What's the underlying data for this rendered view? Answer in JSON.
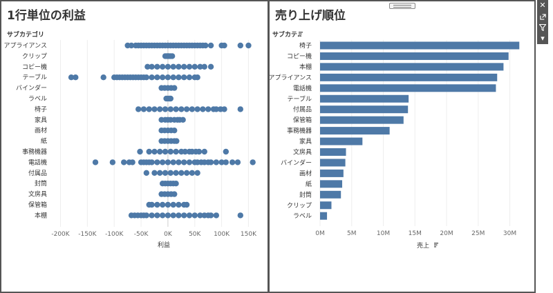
{
  "left_view": {
    "title": "1行単位の利益",
    "row_header": "サブカテゴリ",
    "x_axis_title": "利益"
  },
  "right_view": {
    "title": "売り上げ順位",
    "row_header": "サブカテ..",
    "x_axis_title": "売上"
  },
  "toolbar": {
    "icons": [
      "close-icon",
      "popout-icon",
      "filter-icon",
      "dropdown-icon"
    ]
  },
  "chart_data": [
    {
      "type": "scatter",
      "title": "1行単位の利益",
      "xlabel": "利益",
      "ylabel": "サブカテゴリ",
      "xlim": [
        -220000,
        170000
      ],
      "x_ticks": [
        -200000,
        -150000,
        -100000,
        -50000,
        0,
        50000,
        100000,
        150000
      ],
      "x_tick_labels": [
        "-200K",
        "-150K",
        "-100K",
        "-50K",
        "0K",
        "50K",
        "100K",
        "150K"
      ],
      "grid": true,
      "color": "#4e79a7",
      "categories": [
        "アプライアンス",
        "クリップ",
        "コピー機",
        "テーブル",
        "バインダー",
        "ラベル",
        "椅子",
        "家具",
        "画材",
        "紙",
        "事務機器",
        "電話機",
        "付属品",
        "封筒",
        "文房具",
        "保管箱",
        "本棚"
      ],
      "points": [
        [
          -75000,
          -68000,
          -60000,
          -55000,
          -50000,
          -45000,
          -40000,
          -35000,
          -30000,
          -25000,
          -20000,
          -15000,
          -10000,
          -5000,
          0,
          5000,
          10000,
          15000,
          20000,
          25000,
          30000,
          35000,
          40000,
          45000,
          50000,
          55000,
          60000,
          65000,
          70000,
          80000,
          100000,
          105000,
          135000,
          150000
        ],
        [
          -5000,
          -2000,
          0,
          2000,
          5000,
          8000
        ],
        [
          -38000,
          -30000,
          -20000,
          -10000,
          0,
          10000,
          20000,
          30000,
          40000,
          50000,
          60000,
          68000,
          80000
        ],
        [
          -180000,
          -172000,
          -120000,
          -100000,
          -95000,
          -90000,
          -85000,
          -80000,
          -75000,
          -70000,
          -65000,
          -60000,
          -55000,
          -50000,
          -45000,
          -40000,
          -30000,
          -20000,
          -10000,
          0,
          10000,
          20000,
          30000,
          40000,
          50000,
          55000
        ],
        [
          -12000,
          -6000,
          0,
          6000,
          12000
        ],
        [
          -3000,
          0,
          3000,
          5000
        ],
        [
          -55000,
          -45000,
          -35000,
          -25000,
          -15000,
          -5000,
          5000,
          15000,
          25000,
          35000,
          45000,
          55000,
          65000,
          75000,
          85000,
          90000,
          98000,
          105000,
          135000
        ],
        [
          -12000,
          -5000,
          0,
          5000,
          12000,
          18000,
          22000,
          28000
        ],
        [
          -12000,
          -6000,
          0,
          6000,
          12000
        ],
        [
          -12000,
          -6000,
          0,
          6000,
          12000,
          16000
        ],
        [
          -52000,
          -35000,
          -25000,
          -15000,
          -5000,
          5000,
          15000,
          25000,
          32000,
          40000,
          45000,
          52000,
          58000,
          68000,
          108000
        ],
        [
          -135000,
          -103000,
          -82000,
          -72000,
          -66000,
          -50000,
          -45000,
          -40000,
          -35000,
          -30000,
          -20000,
          -10000,
          0,
          10000,
          20000,
          30000,
          40000,
          50000,
          55000,
          62000,
          68000,
          75000,
          80000,
          90000,
          100000,
          108000,
          120000,
          130000,
          158000
        ],
        [
          -40000,
          -25000,
          -15000,
          -5000,
          5000,
          15000,
          25000,
          35000,
          45000,
          55000
        ],
        [
          -10000,
          -5000,
          0,
          5000,
          10000,
          15000
        ],
        [
          -12000,
          -6000,
          0,
          6000,
          12000
        ],
        [
          -35000,
          -30000,
          -20000,
          -10000,
          0,
          10000,
          20000,
          30000,
          35000
        ],
        [
          -68000,
          -62000,
          -56000,
          -50000,
          -45000,
          -40000,
          -30000,
          -20000,
          -10000,
          0,
          10000,
          20000,
          30000,
          40000,
          50000,
          60000,
          68000,
          75000,
          80000,
          90000,
          135000
        ]
      ]
    },
    {
      "type": "bar",
      "orientation": "horizontal",
      "title": "売り上げ順位",
      "xlabel": "売上",
      "ylabel": "サブカテ..",
      "xlim": [
        0,
        33000000
      ],
      "x_ticks": [
        0,
        5000000,
        10000000,
        15000000,
        20000000,
        25000000,
        30000000
      ],
      "x_tick_labels": [
        "0M",
        "5M",
        "10M",
        "15M",
        "20M",
        "25M",
        "30M"
      ],
      "grid": true,
      "color": "#4e79a7",
      "categories": [
        "椅子",
        "コピー機",
        "本棚",
        "アプライアンス",
        "電話機",
        "テーブル",
        "付属品",
        "保管箱",
        "事務機器",
        "家具",
        "文房具",
        "バインダー",
        "画材",
        "紙",
        "封筒",
        "クリップ",
        "ラベル"
      ],
      "values": [
        31500000,
        29800000,
        29000000,
        28000000,
        27800000,
        14000000,
        13900000,
        13200000,
        11000000,
        6700000,
        4100000,
        4000000,
        3700000,
        3500000,
        3300000,
        1800000,
        1100000
      ]
    }
  ]
}
